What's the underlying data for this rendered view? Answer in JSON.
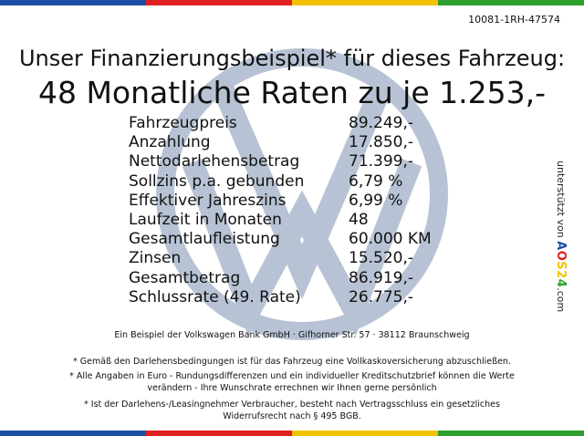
{
  "colors": {
    "stripes": [
      "#1d4ea3",
      "#e02020",
      "#f2c200",
      "#2ca02c"
    ],
    "watermark": "#b7c3d4"
  },
  "ref_number": "10081-1RH-47574",
  "headline": {
    "line1": "Unser Finanzierungsbeispiel* für dieses Fahrzeug:",
    "line2": "48 Monatliche Raten zu je 1.253,-"
  },
  "finance_rows": [
    {
      "label": "Fahrzeugpreis",
      "value": "89.249,-"
    },
    {
      "label": "Anzahlung",
      "value": "17.850,-"
    },
    {
      "label": "Nettodarlehensbetrag",
      "value": "71.399,-"
    },
    {
      "label": "Sollzins p.a. gebunden",
      "value": "6,79 %"
    },
    {
      "label": "Effektiver Jahreszins",
      "value": "6,99 %"
    },
    {
      "label": "Laufzeit in Monaten",
      "value": "48"
    },
    {
      "label": "Gesamtlaufleistung",
      "value": "60.000 KM"
    },
    {
      "label": "Zinsen",
      "value": "15.520,-"
    },
    {
      "label": "Gesamtbetrag",
      "value": "86.919,-"
    },
    {
      "label": "Schlussrate (49. Rate)",
      "value": "26.775,-"
    }
  ],
  "sidebar": {
    "prefix": "unterstützt von",
    "logo_a": "AOS",
    "logo_b": "24",
    "suffix": ".com",
    "logo_colors": [
      "#1d4ea3",
      "#e02020",
      "#f2c200",
      "#2ca02c"
    ]
  },
  "footer": {
    "bank_line": "Ein Beispiel der Volkswagen Bank GmbH · Gifhorner Str. 57 · 38112 Braunschweig",
    "note1": "* Gemäß den Darlehensbedingungen ist für das Fahrzeug eine Vollkaskoversicherung abzuschließen.",
    "note2a": "* Alle Angaben in Euro - Rundungsdifferenzen und ein individueller Kreditschutzbrief können die Werte",
    "note2b": "verändern - Ihre Wunschrate errechnen wir Ihnen gerne persönlich",
    "note3a": "* Ist der Darlehens-/Leasingnehmer Verbraucher, besteht nach Vertragsschluss ein gesetzliches",
    "note3b": "Widerrufsrecht nach § 495 BGB."
  }
}
